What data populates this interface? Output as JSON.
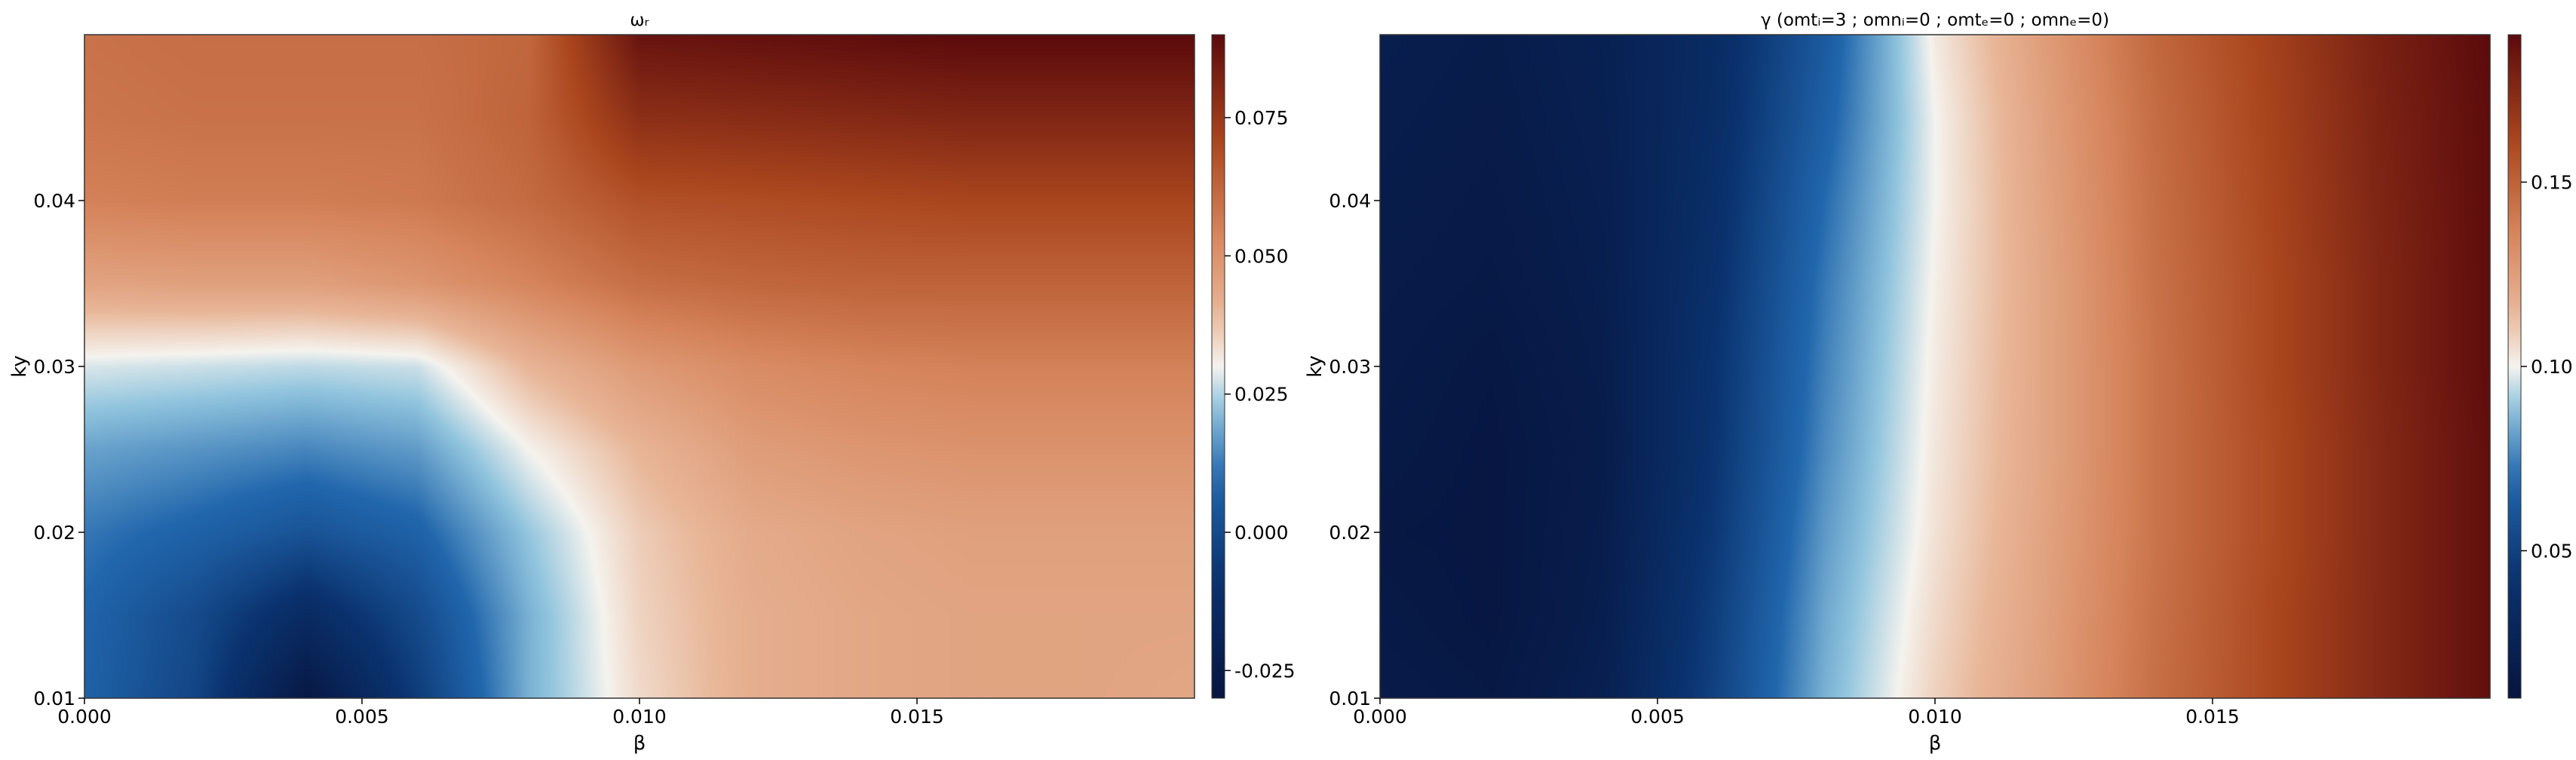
{
  "colors": {
    "map_low": "#07153f",
    "map_mid": "#f5f3ee",
    "map_high": "#5b0a0c"
  },
  "chart_data": [
    {
      "type": "heatmap",
      "title": "ωᵣ",
      "xlabel": "β",
      "ylabel": "ky",
      "xlim": [
        0.0,
        0.02
      ],
      "ylim": [
        0.01,
        0.05
      ],
      "xticks": [
        0.0,
        0.005,
        0.01,
        0.015
      ],
      "xtick_labels": [
        "0.000",
        "0.005",
        "0.010",
        "0.015"
      ],
      "yticks": [
        0.01,
        0.02,
        0.03,
        0.04
      ],
      "ytick_labels": [
        "0.01",
        "0.02",
        "0.03",
        "0.04"
      ],
      "colorbar": {
        "range": [
          -0.03,
          0.09
        ],
        "ticks": [
          -0.025,
          0.0,
          0.025,
          0.05,
          0.075
        ],
        "tick_labels": [
          "-0.025",
          "0.000",
          "0.025",
          "0.050",
          "0.075"
        ]
      },
      "x": [
        0.0,
        0.002,
        0.004,
        0.006,
        0.008,
        0.01,
        0.012,
        0.014,
        0.016,
        0.018,
        0.02
      ],
      "y": [
        0.01,
        0.015,
        0.02,
        0.025,
        0.03,
        0.035,
        0.04,
        0.045,
        0.05
      ],
      "z": [
        [
          0.008,
          -0.002,
          -0.028,
          -0.005,
          0.02,
          0.034,
          0.042,
          0.044,
          0.045,
          0.045,
          0.044
        ],
        [
          0.009,
          0.0,
          -0.014,
          0.0,
          0.02,
          0.035,
          0.042,
          0.044,
          0.045,
          0.045,
          0.045
        ],
        [
          0.012,
          0.008,
          0.003,
          0.008,
          0.023,
          0.036,
          0.043,
          0.045,
          0.046,
          0.046,
          0.046
        ],
        [
          0.018,
          0.016,
          0.014,
          0.017,
          0.03,
          0.04,
          0.047,
          0.049,
          0.05,
          0.05,
          0.05
        ],
        [
          0.028,
          0.027,
          0.026,
          0.027,
          0.04,
          0.048,
          0.052,
          0.054,
          0.055,
          0.055,
          0.055
        ],
        [
          0.045,
          0.046,
          0.046,
          0.049,
          0.054,
          0.06,
          0.062,
          0.063,
          0.063,
          0.063,
          0.063
        ],
        [
          0.055,
          0.056,
          0.056,
          0.057,
          0.061,
          0.068,
          0.069,
          0.07,
          0.071,
          0.071,
          0.071
        ],
        [
          0.058,
          0.059,
          0.059,
          0.059,
          0.063,
          0.078,
          0.079,
          0.08,
          0.081,
          0.081,
          0.081
        ],
        [
          0.059,
          0.06,
          0.06,
          0.06,
          0.062,
          0.087,
          0.088,
          0.089,
          0.09,
          0.09,
          0.09
        ]
      ]
    },
    {
      "type": "heatmap",
      "title": "γ (omtᵢ=3 ; omnᵢ=0 ; omtₑ=0 ; omnₑ=0)",
      "xlabel": "β",
      "ylabel": "ky",
      "xlim": [
        0.0,
        0.02
      ],
      "ylim": [
        0.01,
        0.05
      ],
      "xticks": [
        0.0,
        0.005,
        0.01,
        0.015
      ],
      "xtick_labels": [
        "0.000",
        "0.005",
        "0.010",
        "0.015"
      ],
      "yticks": [
        0.01,
        0.02,
        0.03,
        0.04
      ],
      "ytick_labels": [
        "0.01",
        "0.02",
        "0.03",
        "0.04"
      ],
      "colorbar": {
        "range": [
          0.01,
          0.19
        ],
        "ticks": [
          0.05,
          0.1,
          0.15
        ],
        "tick_labels": [
          "0.05",
          "0.10",
          "0.15"
        ]
      },
      "x": [
        0.0,
        0.002,
        0.004,
        0.006,
        0.008,
        0.01,
        0.012,
        0.014,
        0.016,
        0.018,
        0.02
      ],
      "y": [
        0.01,
        0.015,
        0.02,
        0.025,
        0.03,
        0.035,
        0.04,
        0.045,
        0.05
      ],
      "z": [
        [
          0.017,
          0.014,
          0.022,
          0.05,
          0.085,
          0.108,
          0.125,
          0.145,
          0.16,
          0.175,
          0.188
        ],
        [
          0.015,
          0.012,
          0.02,
          0.048,
          0.083,
          0.106,
          0.124,
          0.144,
          0.16,
          0.175,
          0.188
        ],
        [
          0.013,
          0.012,
          0.019,
          0.045,
          0.08,
          0.104,
          0.123,
          0.143,
          0.159,
          0.175,
          0.188
        ],
        [
          0.015,
          0.012,
          0.018,
          0.043,
          0.077,
          0.103,
          0.122,
          0.143,
          0.159,
          0.175,
          0.188
        ],
        [
          0.016,
          0.013,
          0.019,
          0.042,
          0.075,
          0.102,
          0.122,
          0.143,
          0.16,
          0.176,
          0.189
        ],
        [
          0.017,
          0.015,
          0.02,
          0.04,
          0.073,
          0.101,
          0.122,
          0.144,
          0.16,
          0.176,
          0.189
        ],
        [
          0.018,
          0.016,
          0.021,
          0.038,
          0.07,
          0.1,
          0.123,
          0.145,
          0.161,
          0.177,
          0.189
        ],
        [
          0.019,
          0.017,
          0.022,
          0.036,
          0.066,
          0.1,
          0.124,
          0.146,
          0.162,
          0.178,
          0.189
        ],
        [
          0.02,
          0.018,
          0.023,
          0.035,
          0.063,
          0.102,
          0.126,
          0.148,
          0.163,
          0.179,
          0.19
        ]
      ]
    }
  ]
}
